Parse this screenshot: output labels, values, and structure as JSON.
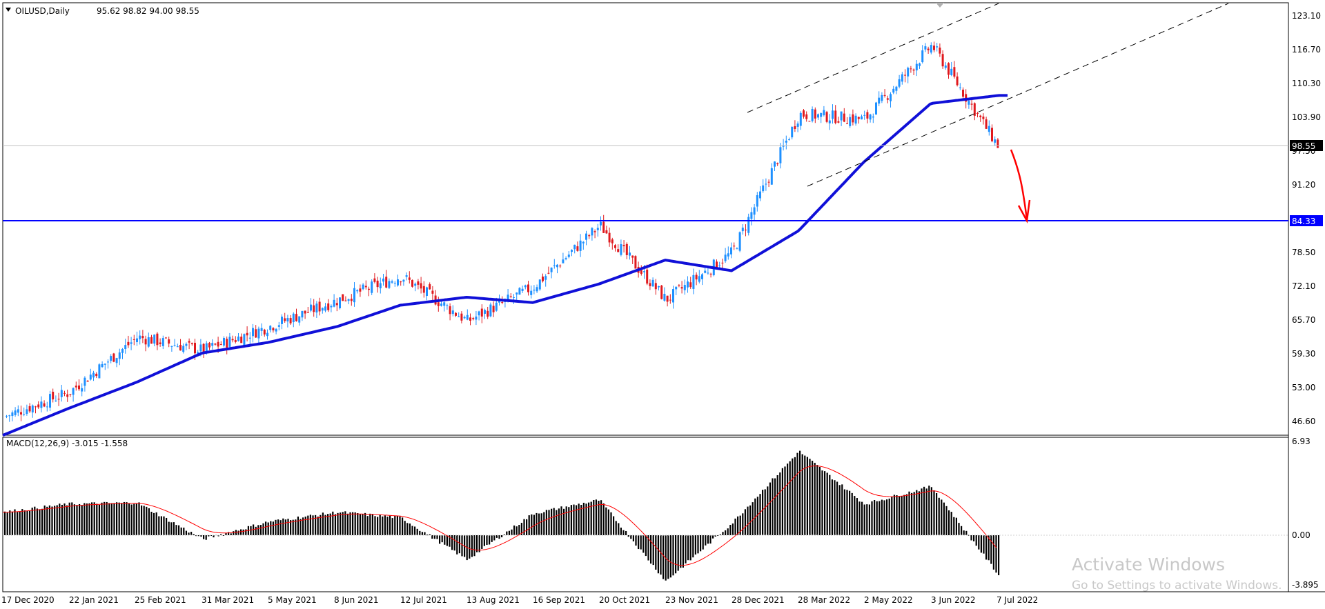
{
  "instrument": {
    "symbol": "OILUSD,Daily",
    "ohlc": "95.62 98.82 94.00 98.55"
  },
  "macd_header": {
    "label": "MACD(12,26,9) -3.015 -1.558"
  },
  "price_axis": {
    "ticks": [
      "123.10",
      "116.70",
      "110.30",
      "103.90",
      "97.50",
      "91.20",
      "84.33",
      "78.50",
      "72.10",
      "65.70",
      "59.30",
      "53.00",
      "46.60"
    ],
    "current_price": "98.55",
    "support_level": "84.33"
  },
  "macd_axis": {
    "ticks": [
      "6.93",
      "0.00",
      "-3.895"
    ]
  },
  "time_axis": {
    "labels": [
      "17 Dec 2020",
      "22 Jan 2021",
      "25 Feb 2021",
      "31 Mar 2021",
      "5 May 2021",
      "8 Jun 2021",
      "12 Jul 2021",
      "13 Aug 2021",
      "16 Sep 2021",
      "20 Oct 2021",
      "23 Nov 2021",
      "28 Dec 2021",
      "28 Mar 2022",
      "2 May 2022",
      "3 Jun 2022",
      "7 Jul 2022"
    ]
  },
  "watermark": {
    "title": "Activate Windows",
    "subtitle": "Go to Settings to activate Windows."
  },
  "colors": {
    "bull": "#1e90ff",
    "bear": "#e0191e",
    "ma": "#1010d8",
    "support": "#0000ff",
    "signal": "#ff0000",
    "hist": "#000000",
    "arrow": "#ff0000"
  },
  "chart_data": [
    {
      "type": "candlestick",
      "title": "OILUSD,Daily",
      "ylim": [
        44.6,
        125.2
      ],
      "key_prices": {
        "last": 98.55,
        "support_line": 84.33,
        "period_high": 121.0,
        "period_low": 46.5
      },
      "close_path": {
        "x": [
          "17 Dec 2020",
          "22 Jan 2021",
          "25 Feb 2021",
          "31 Mar 2021",
          "5 May 2021",
          "8 Jun 2021",
          "12 Jul 2021",
          "13 Aug 2021",
          "16 Sep 2021",
          "20 Oct 2021",
          "23 Nov 2021",
          "28 Dec 2021",
          "28 Mar 2022",
          "2 May 2022",
          "3 Jun 2022",
          "7 Jul 2022"
        ],
        "y": [
          48.0,
          52.5,
          63.0,
          60.5,
          65.0,
          70.0,
          74.5,
          66.0,
          72.5,
          84.0,
          70.0,
          79.0,
          105.0,
          104.0,
          118.0,
          98.55
        ]
      },
      "moving_average": {
        "x": [
          "17 Dec 2020",
          "22 Jan 2021",
          "25 Feb 2021",
          "31 Mar 2021",
          "5 May 2021",
          "8 Jun 2021",
          "12 Jul 2021",
          "13 Aug 2021",
          "16 Sep 2021",
          "20 Oct 2021",
          "23 Nov 2021",
          "28 Dec 2021",
          "28 Mar 2022",
          "2 May 2022",
          "3 Jun 2022",
          "7 Jul 2022"
        ],
        "y": [
          44.5,
          49.5,
          54.5,
          60.0,
          62.0,
          65.0,
          69.0,
          70.5,
          69.5,
          73.0,
          77.5,
          75.5,
          83.0,
          96.0,
          107.0,
          108.5
        ]
      }
    },
    {
      "type": "bar",
      "title": "MACD(12,26,9) -3.015 -1.558",
      "ylim": [
        -4.3,
        7.2
      ],
      "macd_current": -3.015,
      "signal_current": -1.558,
      "x": [
        "17 Dec 2020",
        "22 Jan 2021",
        "25 Feb 2021",
        "31 Mar 2021",
        "5 May 2021",
        "8 Jun 2021",
        "12 Jul 2021",
        "13 Aug 2021",
        "16 Sep 2021",
        "20 Oct 2021",
        "23 Nov 2021",
        "28 Dec 2021",
        "28 Mar 2022",
        "2 May 2022",
        "3 Jun 2022",
        "7 Jul 2022"
      ],
      "series": [
        {
          "values": [
            1.7,
            2.3,
            2.4,
            -0.3,
            1.0,
            1.7,
            1.3,
            -1.8,
            1.6,
            2.6,
            -3.4,
            0.9,
            6.2,
            2.3,
            3.6,
            -3.0
          ]
        }
      ]
    }
  ]
}
